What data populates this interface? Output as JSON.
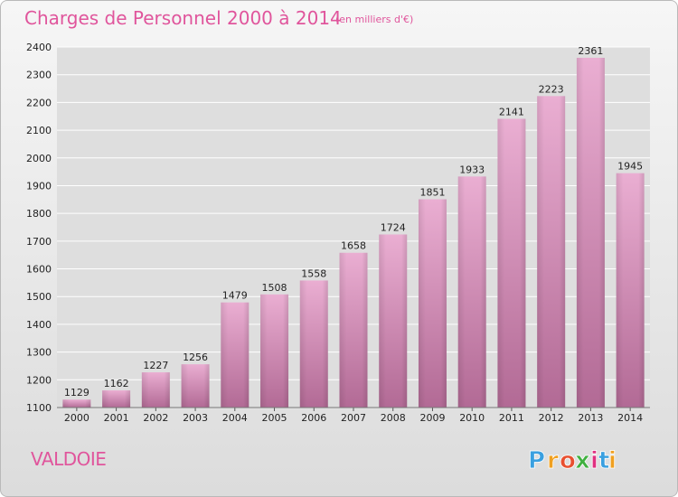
{
  "chart_data": {
    "type": "bar",
    "title": "Charges de Personnel 2000 à 2014",
    "subtitle": "(en milliers d'€)",
    "categories": [
      "2000",
      "2001",
      "2002",
      "2003",
      "2004",
      "2005",
      "2006",
      "2007",
      "2008",
      "2009",
      "2010",
      "2011",
      "2012",
      "2013",
      "2014"
    ],
    "values": [
      1129,
      1162,
      1227,
      1256,
      1479,
      1508,
      1558,
      1658,
      1724,
      1851,
      1933,
      2141,
      2223,
      2361,
      1945
    ],
    "ylim": [
      1100,
      2400
    ],
    "yticks": [
      1100,
      1200,
      1300,
      1400,
      1500,
      1600,
      1700,
      1800,
      1900,
      2000,
      2100,
      2200,
      2300,
      2400
    ],
    "grid": true,
    "xlabel": "",
    "ylabel": ""
  },
  "region_name": "VALDOIE",
  "logo": {
    "letters": [
      "P",
      "r",
      "o",
      "x",
      "i",
      "t",
      "i"
    ],
    "colors": [
      "#3aa0e0",
      "#f0a020",
      "#e85030",
      "#40b040",
      "#e03080",
      "#3aa0e0",
      "#f0a020"
    ]
  },
  "colors": {
    "title": "#e0559c",
    "bar_top": "#eaaed2",
    "bar_bottom": "#b26a95",
    "grid": "#ffffff"
  }
}
